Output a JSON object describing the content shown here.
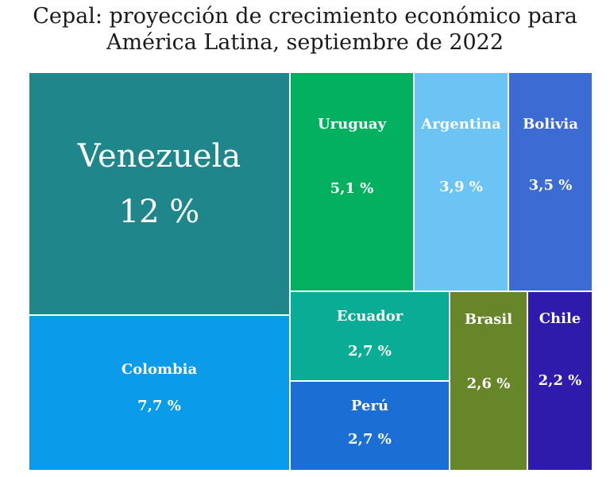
{
  "chart_data": {
    "type": "treemap",
    "title_lines": [
      "Cepal: proyección de crecimiento económico para",
      "América Latina, septiembre de 2022"
    ],
    "items": [
      {
        "name": "Venezuela",
        "value": 12,
        "label": "12 %",
        "color": "#1f878c"
      },
      {
        "name": "Colombia",
        "value": 7.7,
        "label": "7,7 %",
        "color": "#0a9bea"
      },
      {
        "name": "Uruguay",
        "value": 5.1,
        "label": "5,1 %",
        "color": "#02b060"
      },
      {
        "name": "Argentina",
        "value": 3.9,
        "label": "3,9 %",
        "color": "#6cc4f4"
      },
      {
        "name": "Bolivia",
        "value": 3.5,
        "label": "3,5 %",
        "color": "#3d6bd4"
      },
      {
        "name": "Ecuador",
        "value": 2.7,
        "label": "2,7 %",
        "color": "#0aac95"
      },
      {
        "name": "Perú",
        "value": 2.7,
        "label": "2,7 %",
        "color": "#1b6ed4"
      },
      {
        "name": "Brasil",
        "value": 2.6,
        "label": "2,6  %",
        "color": "#67862a"
      },
      {
        "name": "Chile",
        "value": 2.2,
        "label": "2,2 %",
        "color": "#2e1bab"
      }
    ]
  }
}
